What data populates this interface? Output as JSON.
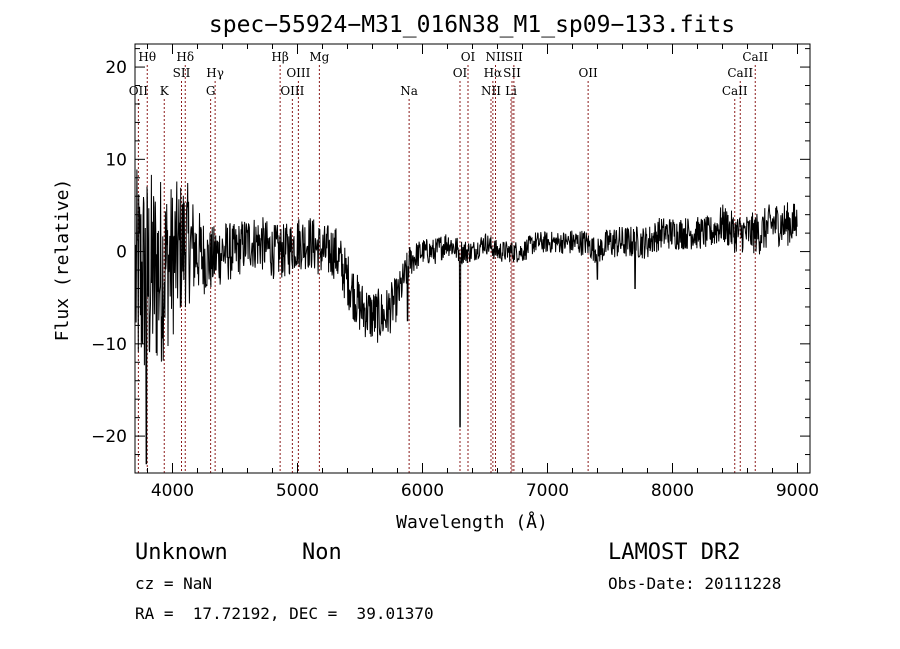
{
  "chart_data": {
    "type": "line",
    "title": "spec−55924−M31_016N38_M1_sp09−133.fits",
    "xlabel": "Wavelength (Å)",
    "ylabel": "Flux (relative)",
    "xlim": [
      3700,
      9100
    ],
    "ylim": [
      -24,
      22.5
    ],
    "xticks": [
      4000,
      5000,
      6000,
      7000,
      8000,
      9000
    ],
    "xtick_labels": [
      "4000",
      "5000",
      "6000",
      "7000",
      "8000",
      "9000"
    ],
    "yticks": [
      20,
      10,
      0,
      -10,
      -20
    ],
    "ytick_labels": [
      "20",
      "10",
      "0",
      "−10",
      "−20"
    ],
    "line_color": "#000000",
    "marker_color": "#8b1a1a",
    "spectrum_trend": {
      "x": [
        3700,
        3800,
        3900,
        4000,
        4100,
        4200,
        4300,
        4400,
        4500,
        4600,
        4700,
        4800,
        4900,
        5000,
        5100,
        5200,
        5300,
        5400,
        5500,
        5600,
        5700,
        5800,
        5900,
        6000,
        6100,
        6200,
        6300,
        6400,
        6500,
        6600,
        6700,
        6800,
        6900,
        7000,
        7100,
        7200,
        7300,
        7400,
        7500,
        7600,
        7700,
        7800,
        7900,
        8000,
        8100,
        8200,
        8300,
        8400,
        8500,
        8600,
        8700,
        8800,
        8900,
        9000
      ],
      "y": [
        -3,
        -3,
        -2,
        -1,
        1,
        0,
        -1,
        0,
        0,
        1,
        1,
        0,
        0,
        1,
        1,
        0,
        0,
        -3,
        -6,
        -7,
        -7,
        -5,
        -1,
        0,
        0,
        1,
        0,
        0,
        1,
        0,
        0,
        0,
        1,
        1,
        1,
        1,
        1,
        0,
        1,
        1,
        1,
        1,
        2,
        2,
        2,
        2,
        2,
        3,
        2,
        2,
        2,
        3,
        3,
        3
      ],
      "noise": [
        10,
        10,
        9,
        7,
        6,
        4,
        3,
        3,
        2.5,
        2.5,
        2.5,
        2.5,
        2.5,
        2.5,
        2.5,
        2.5,
        2.5,
        2.5,
        2.5,
        2.5,
        2.5,
        2,
        1.5,
        1.2,
        1.2,
        1.2,
        1.2,
        1,
        1,
        1,
        1,
        1,
        1,
        1,
        1,
        1.2,
        1.2,
        1.2,
        1.5,
        1.5,
        1.5,
        1.5,
        1.5,
        1.5,
        1.5,
        1.5,
        1.5,
        1.8,
        1.8,
        1.8,
        2,
        2,
        2,
        2
      ]
    },
    "spectrum_features": [
      {
        "x": 6300,
        "y": -19
      },
      {
        "x": 5880,
        "y": -7.5
      },
      {
        "x": 3790,
        "y": -23
      },
      {
        "x": 7400,
        "y": -3
      },
      {
        "x": 7700,
        "y": -4
      }
    ],
    "lines": [
      {
        "label": "Hθ",
        "x": 3798,
        "row": 0
      },
      {
        "label": "OII",
        "x": 3727,
        "row": 2
      },
      {
        "label": "K",
        "x": 3934,
        "row": 2
      },
      {
        "label": "Hδ",
        "x": 4102,
        "row": 0
      },
      {
        "label": "SII",
        "x": 4072,
        "row": 1
      },
      {
        "label": "Hγ",
        "x": 4341,
        "row": 1
      },
      {
        "label": "G",
        "x": 4305,
        "row": 2
      },
      {
        "label": "Hβ",
        "x": 4861,
        "row": 0
      },
      {
        "label": "OIII",
        "x": 4959,
        "row": 2
      },
      {
        "label": "OIII",
        "x": 5007,
        "row": 1
      },
      {
        "label": "Mg",
        "x": 5175,
        "row": 0
      },
      {
        "label": "Na",
        "x": 5893,
        "row": 2
      },
      {
        "label": "OI",
        "x": 6364,
        "row": 0
      },
      {
        "label": "OI",
        "x": 6300,
        "row": 1
      },
      {
        "label": "NII",
        "x": 6584,
        "row": 0
      },
      {
        "label": "Hα",
        "x": 6563,
        "row": 1
      },
      {
        "label": "NII",
        "x": 6548,
        "row": 2
      },
      {
        "label": "SII",
        "x": 6731,
        "row": 0
      },
      {
        "label": "SII",
        "x": 6716,
        "row": 1
      },
      {
        "label": "Li",
        "x": 6708,
        "row": 2
      },
      {
        "label": "OII",
        "x": 7325,
        "row": 1
      },
      {
        "label": "CaII",
        "x": 8662,
        "row": 0
      },
      {
        "label": "CaII",
        "x": 8542,
        "row": 1
      },
      {
        "label": "CaII",
        "x": 8498,
        "row": 2
      }
    ]
  },
  "footer": {
    "object_class": "Unknown",
    "object_subclass": "Non",
    "survey": "LAMOST DR2",
    "cz": "cz = NaN",
    "obs_date": "Obs-Date: 20111228",
    "coords": "RA =  17.72192, DEC =  39.01370"
  }
}
